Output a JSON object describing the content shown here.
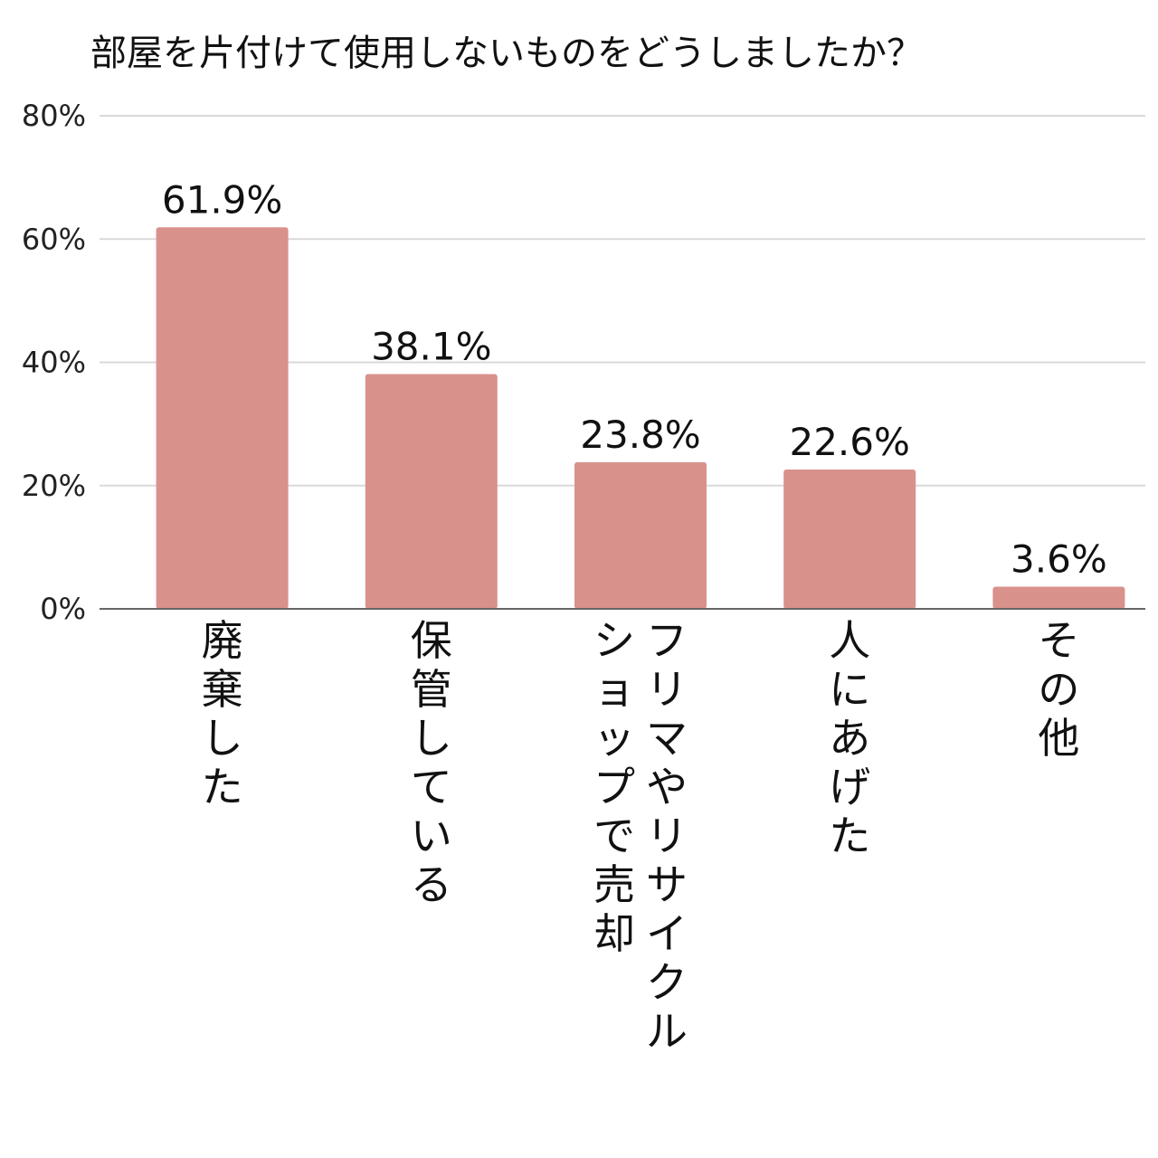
{
  "chart_data": {
    "type": "bar",
    "title": "部屋を片付けて使用しないものをどうしましたか？",
    "xlabel": "",
    "ylabel": "",
    "ylim": [
      0,
      80
    ],
    "yticks": [
      0,
      20,
      40,
      60,
      80
    ],
    "ytick_labels": [
      "0%",
      "20%",
      "40%",
      "60%",
      "80%"
    ],
    "grid": true,
    "categories": [
      "廃棄した",
      "保管している",
      "フリマやリサイクルショップで売却",
      "人にあげた",
      "その他"
    ],
    "category_lines": [
      [
        "廃棄した"
      ],
      [
        "保管している"
      ],
      [
        "フリマやリサイクル",
        "ショップで売却"
      ],
      [
        "人にあげた"
      ],
      [
        "その他"
      ]
    ],
    "values": [
      61.9,
      38.1,
      23.8,
      22.6,
      3.6
    ],
    "value_labels": [
      "61.9%",
      "38.1%",
      "23.8%",
      "22.6%",
      "3.6%"
    ],
    "colors": {
      "bar": "#d9918c",
      "grid": "#d9d9d9",
      "axis": "#666666"
    }
  }
}
